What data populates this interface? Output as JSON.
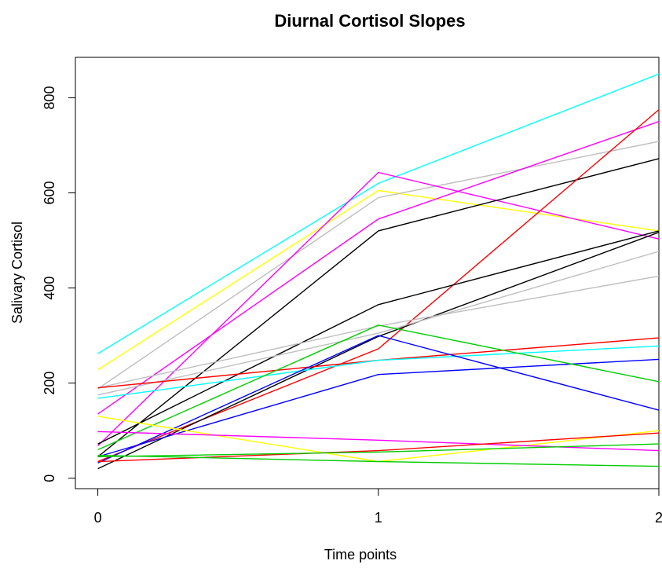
{
  "chart_data": {
    "type": "line",
    "title": "Diurnal Cortisol Slopes",
    "xlabel": "Time points",
    "ylabel": "Salivary Cortisol",
    "x": [
      0,
      1,
      2
    ],
    "x_ticks": [
      "0",
      "1",
      "2"
    ],
    "y_ticks": [
      0,
      200,
      400,
      600,
      800
    ],
    "xlim": [
      -0.08,
      2.0
    ],
    "ylim": [
      -22,
      885
    ],
    "grid": false,
    "legend": "none",
    "series": [
      {
        "color": "#00FFFF",
        "values": [
          262,
          620,
          850
        ]
      },
      {
        "color": "#FFFF00",
        "values": [
          228,
          605,
          520
        ]
      },
      {
        "color": "#BEBEBE",
        "values": [
          188,
          590,
          708
        ]
      },
      {
        "color": "#FF00FF",
        "values": [
          135,
          545,
          750
        ]
      },
      {
        "color": "#FF00FF",
        "values": [
          68,
          643,
          503
        ]
      },
      {
        "color": "#000000",
        "values": [
          45,
          520,
          672
        ]
      },
      {
        "color": "#FF0000",
        "values": [
          35,
          272,
          775
        ]
      },
      {
        "color": "#000000",
        "values": [
          72,
          365,
          520
        ]
      },
      {
        "color": "#000000",
        "values": [
          20,
          298,
          517
        ]
      },
      {
        "color": "#BEBEBE",
        "values": [
          175,
          305,
          477
        ]
      },
      {
        "color": "#BEBEBE",
        "values": [
          190,
          320,
          425
        ]
      },
      {
        "color": "#FF0000",
        "values": [
          190,
          248,
          295
        ]
      },
      {
        "color": "#00FFFF",
        "values": [
          168,
          248,
          278
        ]
      },
      {
        "color": "#0000FF",
        "values": [
          45,
          218,
          250
        ]
      },
      {
        "color": "#0000FF",
        "values": [
          32,
          300,
          143
        ]
      },
      {
        "color": "#00CD00",
        "values": [
          60,
          322,
          203
        ]
      },
      {
        "color": "#FFFF00",
        "values": [
          130,
          35,
          100
        ]
      },
      {
        "color": "#FF00FF",
        "values": [
          98,
          80,
          58
        ]
      },
      {
        "color": "#FF0000",
        "values": [
          35,
          58,
          95
        ]
      },
      {
        "color": "#00CD00",
        "values": [
          45,
          55,
          72
        ]
      },
      {
        "color": "#00CD00",
        "values": [
          48,
          35,
          25
        ]
      }
    ]
  }
}
